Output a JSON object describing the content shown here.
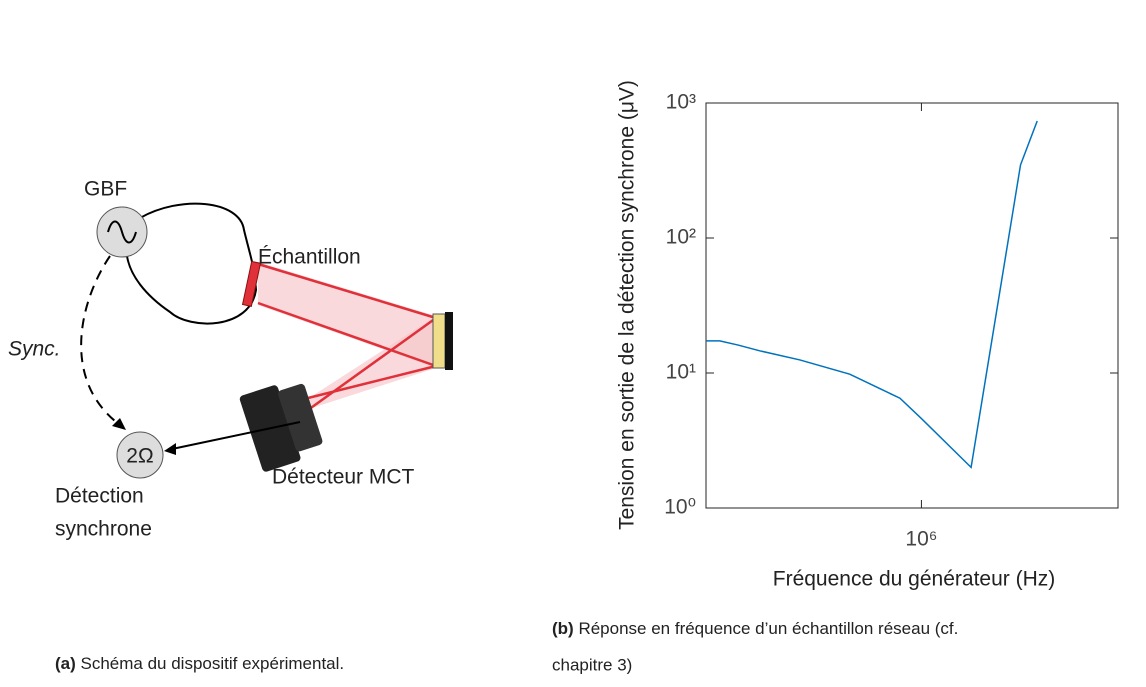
{
  "diagram": {
    "labels": {
      "gbf": "GBF",
      "sample": "Échantillon",
      "sync": "Sync.",
      "lockin_symbol": "2Ω",
      "detector": "Détecteur MCT",
      "lockin_line1": "Détection",
      "lockin_line2": "synchrone"
    },
    "caption": {
      "tag": "(a)",
      "text": " Schéma du dispositif expérimental."
    }
  },
  "chart_data": {
    "type": "line",
    "caption": {
      "tag": "(b)",
      "text_line1": " Réponse en fréquence d’un échantillon réseau (cf.",
      "text_line2": "chapitre 3)"
    },
    "x_label": "Fréquence du générateur (Hz)",
    "y_label": "Tension en sortie de la détection synchrone (μV)",
    "x_scale": "log",
    "y_scale": "log",
    "xlim": [
      300000,
      3000000
    ],
    "ylim": [
      1,
      1000
    ],
    "xticks": [
      {
        "value": 1000000,
        "label": "10⁶"
      }
    ],
    "yticks": [
      {
        "value": 1,
        "label": "10⁰"
      },
      {
        "value": 10,
        "label": "10¹"
      },
      {
        "value": 100,
        "label": "10²"
      },
      {
        "value": 1000,
        "label": "10³"
      }
    ],
    "series": [
      {
        "color": "#0072bd",
        "x": [
          300000,
          324000,
          359000,
          405000,
          507000,
          670000,
          790000,
          887000,
          1000000,
          1320000,
          1740000,
          1910000
        ],
        "values": [
          17.3,
          17.3,
          16.1,
          14.6,
          12.5,
          9.8,
          7.7,
          6.5,
          4.6,
          2,
          348,
          736
        ]
      }
    ]
  }
}
